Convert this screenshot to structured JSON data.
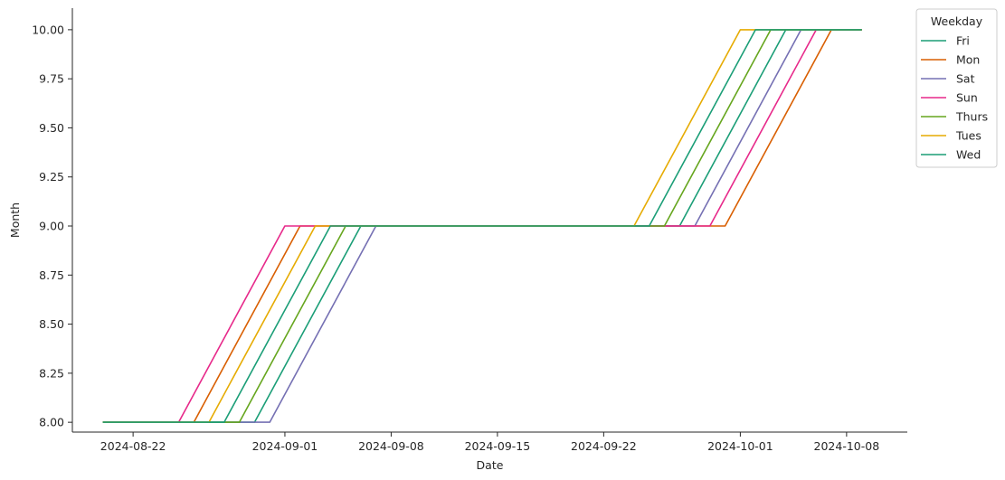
{
  "chart_data": {
    "type": "line",
    "title": "",
    "xlabel": "Date",
    "ylabel": "Month",
    "xlim": [
      "2024-08-18",
      "2024-10-12"
    ],
    "ylim": [
      7.95,
      10.11
    ],
    "x_ticks": [
      "2024-08-22",
      "2024-09-01",
      "2024-09-08",
      "2024-09-15",
      "2024-09-22",
      "2024-10-01",
      "2024-10-08"
    ],
    "y_ticks": [
      "8.00",
      "8.25",
      "8.50",
      "8.75",
      "9.00",
      "9.25",
      "9.50",
      "9.75",
      "10.00"
    ],
    "grid": false,
    "legend": {
      "title": "Weekday",
      "placement": "upper-right-outside"
    },
    "series": [
      {
        "name": "Fri",
        "color": "#1b9e77",
        "x": [
          "2024-08-20",
          "2024-08-30",
          "2024-09-06",
          "2024-09-27",
          "2024-10-04",
          "2024-10-09"
        ],
        "y": [
          8,
          8,
          9,
          9,
          10,
          10
        ]
      },
      {
        "name": "Mon",
        "color": "#d95f02",
        "x": [
          "2024-08-20",
          "2024-08-26",
          "2024-09-02",
          "2024-09-30",
          "2024-10-07",
          "2024-10-09"
        ],
        "y": [
          8,
          8,
          9,
          9,
          10,
          10
        ]
      },
      {
        "name": "Sat",
        "color": "#7570b3",
        "x": [
          "2024-08-20",
          "2024-08-31",
          "2024-09-07",
          "2024-09-28",
          "2024-10-05",
          "2024-10-09"
        ],
        "y": [
          8,
          8,
          9,
          9,
          10,
          10
        ]
      },
      {
        "name": "Sun",
        "color": "#e7298a",
        "x": [
          "2024-08-20",
          "2024-08-25",
          "2024-09-01",
          "2024-09-29",
          "2024-10-06",
          "2024-10-09"
        ],
        "y": [
          8,
          8,
          9,
          9,
          10,
          10
        ]
      },
      {
        "name": "Thurs",
        "color": "#66a61e",
        "x": [
          "2024-08-20",
          "2024-08-29",
          "2024-09-05",
          "2024-09-26",
          "2024-10-03",
          "2024-10-09"
        ],
        "y": [
          8,
          8,
          9,
          9,
          10,
          10
        ]
      },
      {
        "name": "Tues",
        "color": "#e6ab02",
        "x": [
          "2024-08-20",
          "2024-08-27",
          "2024-09-03",
          "2024-09-24",
          "2024-10-01",
          "2024-10-09"
        ],
        "y": [
          8,
          8,
          9,
          9,
          10,
          10
        ]
      },
      {
        "name": "Wed",
        "color": "#1b9e77",
        "x": [
          "2024-08-20",
          "2024-08-28",
          "2024-09-04",
          "2024-09-25",
          "2024-10-02",
          "2024-10-09"
        ],
        "y": [
          8,
          8,
          9,
          9,
          10,
          10
        ]
      }
    ]
  }
}
